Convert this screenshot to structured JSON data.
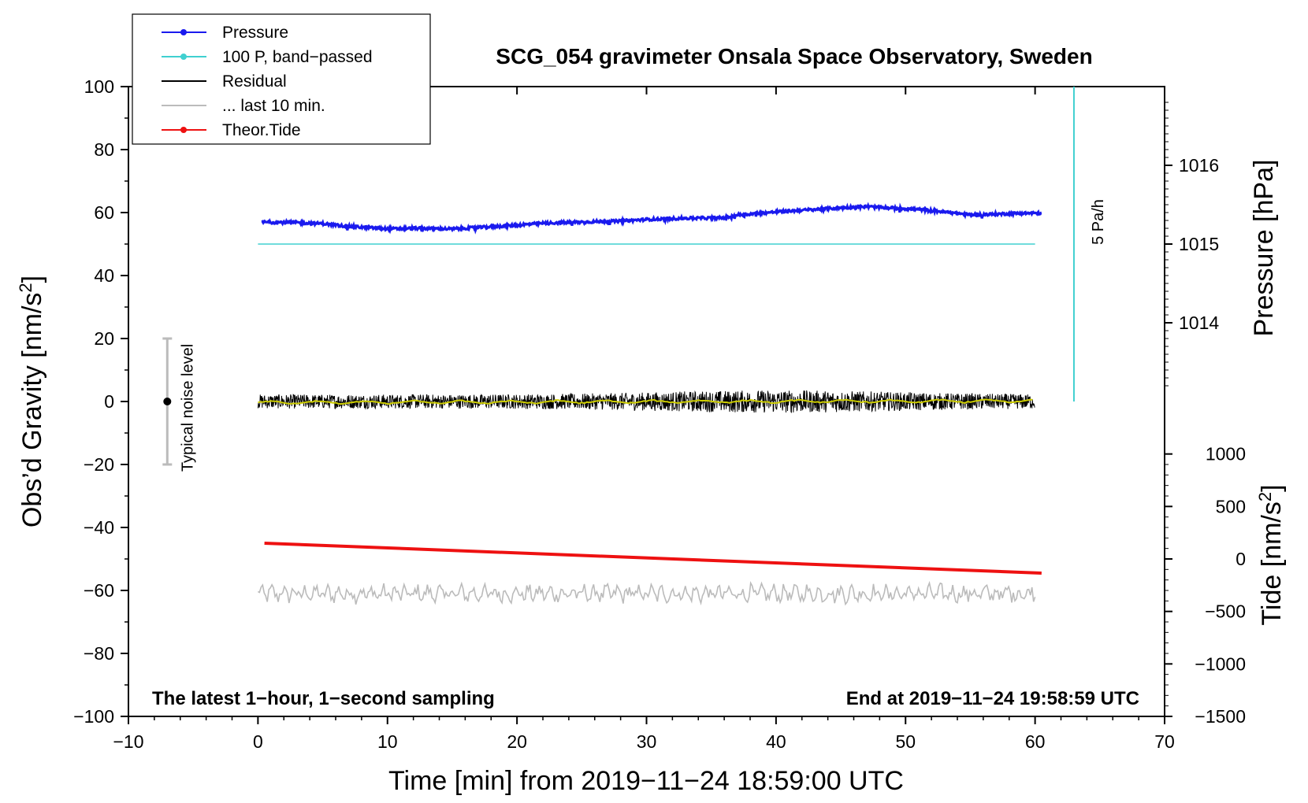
{
  "chart_data": {
    "type": "line",
    "title": "SCG_054 gravimeter Onsala Space Observatory, Sweden",
    "xlabel": "Time [min] from 2019−11−24 18:59:00 UTC",
    "xlim": [
      -10,
      70
    ],
    "x_ticks": [
      -10,
      0,
      10,
      20,
      30,
      40,
      50,
      60,
      70
    ],
    "x_tick_labels": [
      "−10",
      "0",
      "10",
      "20",
      "30",
      "40",
      "50",
      "60",
      "70"
    ],
    "left_axis": {
      "label_main": "Obs’d Gravity [nm/s",
      "label_sup": "2",
      "label_end": "]",
      "lim": [
        -100,
        100
      ],
      "ticks": [
        -100,
        -80,
        -60,
        -40,
        -20,
        0,
        20,
        40,
        60,
        80,
        100
      ],
      "tick_labels": [
        "−100",
        "−80",
        "−60",
        "−40",
        "−20",
        "0",
        "20",
        "40",
        "60",
        "80",
        "100"
      ]
    },
    "pressure_axis": {
      "label": "Pressure [hPa]",
      "ticks": [
        1014,
        1015,
        1016
      ],
      "tick_labels": [
        "1014",
        "1015",
        "1016"
      ]
    },
    "tide_axis": {
      "label_main": "Tide [nm/s",
      "label_sup": "2",
      "label_end": "]",
      "ticks": [
        1000,
        500,
        0,
        -500,
        -1000,
        -1500
      ],
      "tick_labels": [
        "1000",
        "500",
        "0",
        "−500",
        "−1000",
        "−1500"
      ]
    },
    "legend": {
      "placement": "top-left",
      "entries": [
        {
          "label": "Pressure",
          "color": "#1a1aee",
          "marker": true
        },
        {
          "label": "100 P, band−passed",
          "color": "#40d0d0",
          "marker": true
        },
        {
          "label": "Residual",
          "color": "#000000",
          "marker": false
        },
        {
          "label": "... last 10 min.",
          "color": "#bbbbbb",
          "marker": false
        },
        {
          "label": "Theor.Tide",
          "color": "#ee1111",
          "marker": true
        }
      ]
    },
    "series": [
      {
        "name": "Pressure",
        "color": "#1a1aee",
        "x": [
          0.3,
          3,
          5,
          7,
          9,
          10,
          12,
          15,
          18,
          20,
          22,
          25,
          28,
          30,
          33,
          36,
          37,
          40,
          43,
          45,
          47,
          49,
          51,
          53,
          55,
          57,
          59,
          60.5
        ],
        "y": [
          57,
          56.8,
          56.5,
          55.6,
          55.1,
          54.8,
          55,
          54.8,
          55.5,
          56,
          56.6,
          57,
          57.3,
          57.8,
          58.2,
          58.3,
          59.2,
          60.2,
          61,
          61.5,
          61.9,
          61.4,
          61,
          60.2,
          59.3,
          59.5,
          59.8,
          59.8
        ]
      },
      {
        "name": "100 P, band−passed",
        "color": "#40d0d0",
        "x": [
          0,
          60
        ],
        "y": [
          50,
          50
        ]
      },
      {
        "name": "Residual",
        "color": "#000000",
        "x_range": [
          0,
          60
        ],
        "y_center": 0,
        "amplitude": 2.5
      },
      {
        "name": "... last 10 min.",
        "color": "#bbbbbb",
        "x_range": [
          0,
          60
        ],
        "y_center": -61,
        "amplitude": 2.5
      },
      {
        "name": "Theor.Tide",
        "color": "#ee1111",
        "x": [
          0.5,
          60.5
        ],
        "y": [
          -45,
          -54.5
        ]
      }
    ],
    "filtered_residual": {
      "color": "#cccc00",
      "x_range": [
        0,
        60
      ],
      "y_center": 0.5
    },
    "rate_bar": {
      "label": "5 Pa/h",
      "x": 63,
      "y_range": [
        0,
        100
      ],
      "color": "#40d0d0"
    },
    "noise_bar": {
      "label": "Typical noise level",
      "x": -7,
      "center": 0,
      "range": [
        -20,
        20
      ]
    },
    "inset_left": "The latest 1−hour, 1−second sampling",
    "inset_right": "End at 2019−11−24 19:58:59 UTC",
    "grid": false
  }
}
